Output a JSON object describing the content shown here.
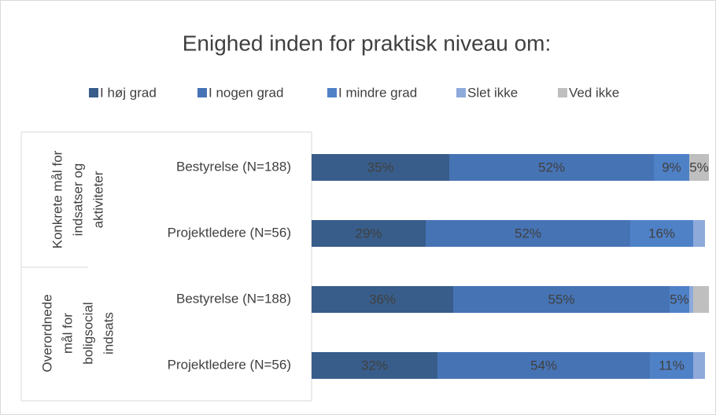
{
  "chart_data": {
    "type": "stacked-bar-horizontal",
    "title": "Enighed inden for praktisk niveau om:",
    "categories": [
      "Bestyrelse (N=188)",
      "Projektledere (N=56)",
      "Bestyrelse (N=188)",
      "Projektledere (N=56)"
    ],
    "groups": [
      [
        "Konkrete mål for",
        "indsatser og",
        "aktiviteter"
      ],
      [
        "Overordnede",
        "mål for",
        "boligsocial",
        "indsats"
      ]
    ],
    "xlim": [
      0,
      100
    ],
    "legend": "top",
    "series": [
      {
        "name": "I høj grad",
        "color": "#385d8a",
        "values": [
          35,
          29,
          36,
          32
        ],
        "value_labels": [
          "35%",
          "29%",
          "36%",
          "32%"
        ]
      },
      {
        "name": "I nogen grad",
        "color": "#4673b4",
        "values": [
          52,
          52,
          55,
          54
        ],
        "value_labels": [
          "52%",
          "52%",
          "55%",
          "54%"
        ]
      },
      {
        "name": "I mindre grad",
        "color": "#4f81c7",
        "values": [
          9,
          16,
          5,
          11
        ],
        "value_labels": [
          "9%",
          "16%",
          "5%",
          "11%"
        ]
      },
      {
        "name": "Slet ikke",
        "color": "#8eaadb",
        "values": [
          0,
          3,
          1,
          3
        ],
        "value_labels": [
          null,
          null,
          null,
          null
        ]
      },
      {
        "name": "Ved ikke",
        "color": "#bfbfbf",
        "values": [
          5,
          0,
          4,
          0
        ],
        "value_labels": [
          "5%",
          null,
          null,
          null
        ]
      }
    ]
  }
}
